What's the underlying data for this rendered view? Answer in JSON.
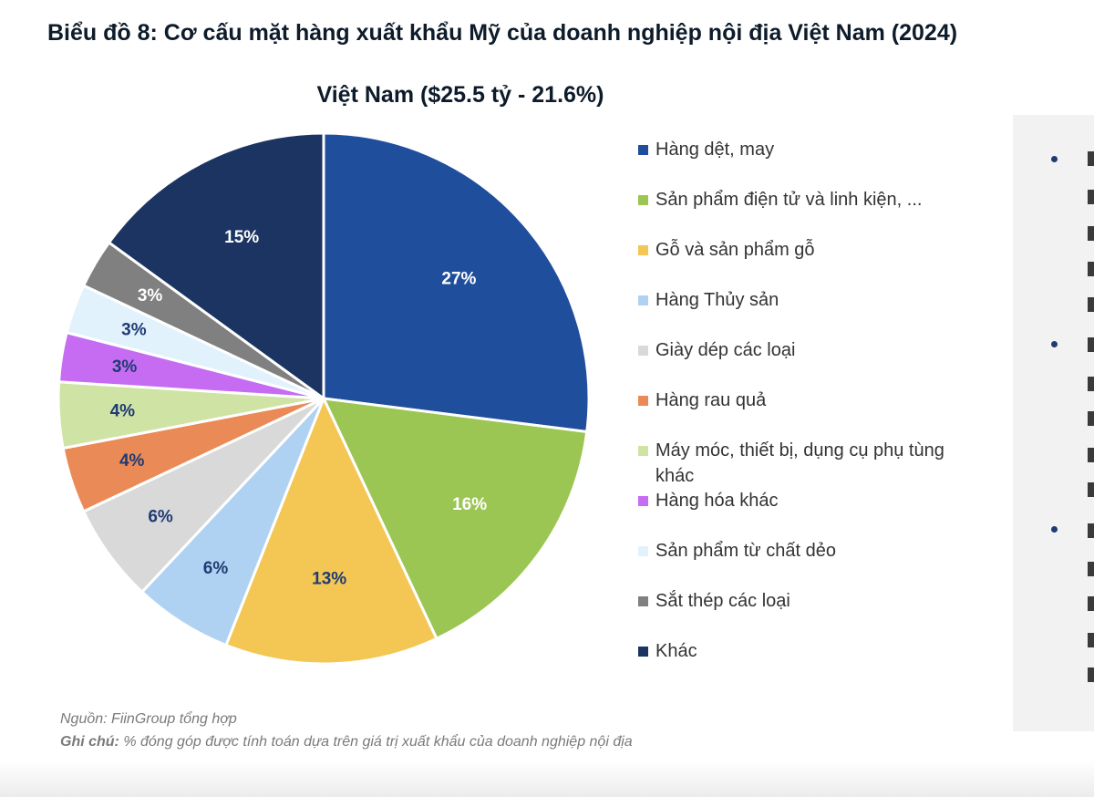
{
  "header": {
    "doc_title": "Biểu đồ 8:  Cơ cấu mặt hàng xuất khẩu Mỹ của doanh nghiệp nội địa Việt Nam (2024)"
  },
  "chart_data": {
    "type": "pie",
    "title": "Việt Nam ($25.5 tỷ - 21.6%)",
    "start_angle": "12 o'clock",
    "direction": "clockwise",
    "legend_position": "right",
    "slices": [
      {
        "label": "Hàng dệt, may",
        "value": 27,
        "display": "27%",
        "color": "#1f4e9c",
        "label_color": "#ffffff"
      },
      {
        "label": "Sản phẩm điện tử và linh kiện, ...",
        "value": 16,
        "display": "16%",
        "color": "#9bc653",
        "label_color": "#ffffff"
      },
      {
        "label": "Gỗ và sản phẩm gỗ",
        "value": 13,
        "display": "13%",
        "color": "#f4c653",
        "label_color": "#1f3b73"
      },
      {
        "label": "Hàng Thủy sản",
        "value": 6,
        "display": "6%",
        "color": "#afd2f2",
        "label_color": "#1f3b73"
      },
      {
        "label": "Giày dép các loại",
        "value": 6,
        "display": "6%",
        "color": "#d9d9d9",
        "label_color": "#1f3b73"
      },
      {
        "label": "Hàng rau quả",
        "value": 4,
        "display": "4%",
        "color": "#ea8a56",
        "label_color": "#1f3b73"
      },
      {
        "label": "Máy móc, thiết bị, dụng cụ phụ tùng khác",
        "value": 4,
        "display": "4%",
        "color": "#cfe3a5",
        "label_color": "#1f3b73"
      },
      {
        "label": "Hàng hóa khác",
        "value": 3,
        "display": "3%",
        "color": "#c66cf2",
        "label_color": "#1f3b73"
      },
      {
        "label": "Sản phẩm từ chất dẻo",
        "value": 3,
        "display": "3%",
        "color": "#e2f2fc",
        "label_color": "#1f3b73"
      },
      {
        "label": "Sắt thép các loại",
        "value": 3,
        "display": "3%",
        "color": "#808080",
        "label_color": "#ffffff"
      },
      {
        "label": "Khác",
        "value": 15,
        "display": "15%",
        "color": "#1b3461",
        "label_color": "#ffffff"
      }
    ]
  },
  "footer": {
    "source": "Nguồn: FiinGroup tổng hợp",
    "note_label": "Ghi chú:",
    "note_text": " % đóng góp được tính toán dựa trên giá trị xuất khẩu của doanh nghiệp nội địa"
  }
}
